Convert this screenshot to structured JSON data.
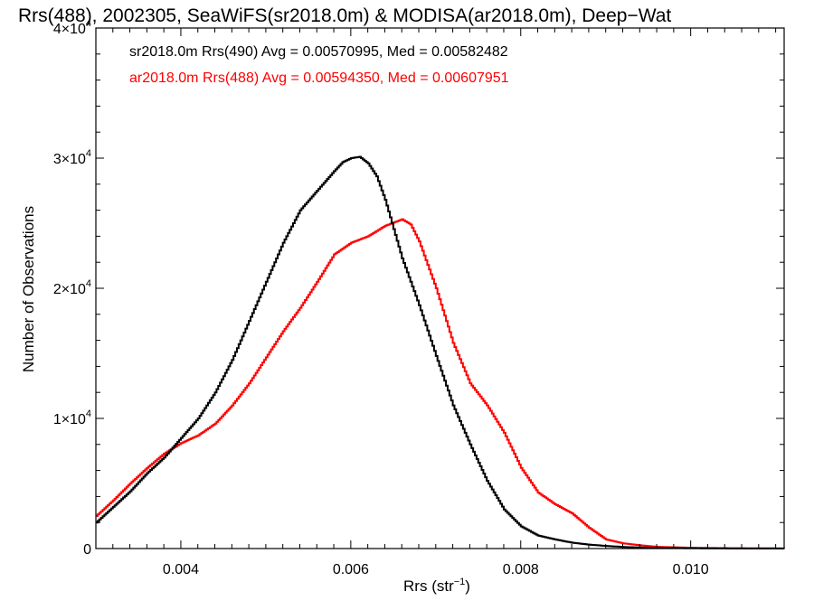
{
  "chart_data": {
    "type": "line",
    "title": "Rrs(488), 2002305, SeaWiFS(sr2018.0m) & MODISA(ar2018.0m), Deep−Wat",
    "xlabel_main": "Rrs (str",
    "xlabel_sup": "−1",
    "xlabel_close": ")",
    "ylabel": "Number of Observations",
    "xlim": [
      0.003,
      0.0111
    ],
    "ylim": [
      0,
      40000
    ],
    "x_ticks": [
      0.004,
      0.006,
      0.008,
      0.01
    ],
    "x_tick_labels": [
      "0.004",
      "0.006",
      "0.008",
      "0.010"
    ],
    "y_ticks": [
      0,
      10000,
      20000,
      30000,
      40000
    ],
    "y_tick_labels": [
      {
        "base": "0",
        "exp": ""
      },
      {
        "base": "1×10",
        "exp": "4"
      },
      {
        "base": "2×10",
        "exp": "4"
      },
      {
        "base": "3×10",
        "exp": "4"
      },
      {
        "base": "4×10",
        "exp": "4"
      }
    ],
    "grid": false,
    "series": [
      {
        "name": "sr2018.0m Rrs(490)",
        "color": "#000000",
        "legend_text": "sr2018.0m Rrs(490) Avg = 0.00570995, Med = 0.00582482",
        "x": [
          0.003,
          0.0032,
          0.0034,
          0.0036,
          0.0038,
          0.004,
          0.0042,
          0.0044,
          0.0046,
          0.0048,
          0.005,
          0.0052,
          0.0054,
          0.0056,
          0.0058,
          0.0059,
          0.006,
          0.0061,
          0.0062,
          0.0063,
          0.0064,
          0.0066,
          0.0068,
          0.007,
          0.0072,
          0.0074,
          0.0076,
          0.0078,
          0.008,
          0.0082,
          0.0084,
          0.0086,
          0.0088,
          0.009,
          0.0092,
          0.0094,
          0.0096,
          0.01,
          0.0105,
          0.0111
        ],
        "y": [
          2000,
          3200,
          4400,
          5800,
          7000,
          8500,
          10000,
          12000,
          14500,
          17500,
          20500,
          23500,
          26000,
          27500,
          29000,
          29700,
          30000,
          30100,
          29600,
          28600,
          26800,
          22300,
          18700,
          14800,
          11000,
          8000,
          5200,
          3000,
          1700,
          1000,
          700,
          450,
          300,
          200,
          120,
          80,
          50,
          25,
          10,
          5
        ]
      },
      {
        "name": "ar2018.0m Rrs(488)",
        "color": "#ff0000",
        "legend_text": "ar2018.0m Rrs(488) Avg = 0.00594350, Med = 0.00607951",
        "x": [
          0.003,
          0.0032,
          0.0034,
          0.0036,
          0.0038,
          0.004,
          0.0042,
          0.0044,
          0.0046,
          0.0048,
          0.005,
          0.0052,
          0.0054,
          0.0056,
          0.0058,
          0.006,
          0.0062,
          0.0064,
          0.0066,
          0.0067,
          0.0068,
          0.007,
          0.0072,
          0.0074,
          0.0076,
          0.0078,
          0.008,
          0.0082,
          0.0084,
          0.0086,
          0.0088,
          0.009,
          0.0092,
          0.0094,
          0.0096,
          0.01,
          0.0105,
          0.0111
        ],
        "y": [
          2500,
          3700,
          5000,
          6200,
          7300,
          8100,
          8700,
          9600,
          11000,
          12700,
          14700,
          16700,
          18500,
          20500,
          22600,
          23500,
          24000,
          24800,
          25300,
          24900,
          23600,
          20000,
          15800,
          12700,
          11000,
          8900,
          6200,
          4300,
          3400,
          2700,
          1600,
          700,
          400,
          250,
          130,
          60,
          25,
          10
        ]
      }
    ]
  }
}
